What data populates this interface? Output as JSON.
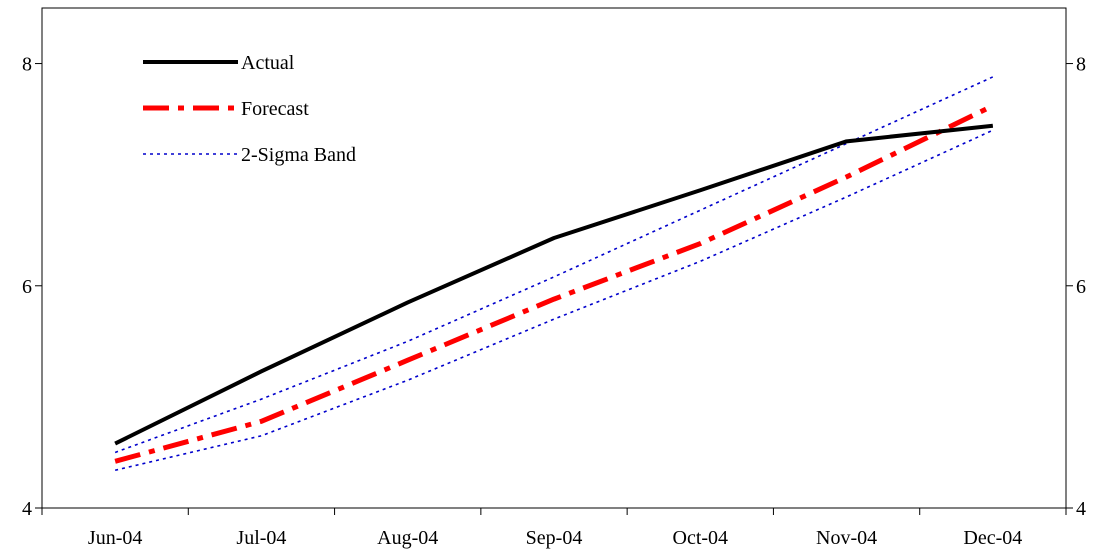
{
  "chart_data": {
    "type": "line",
    "title": "",
    "xlabel": "",
    "ylabel": "",
    "categories": [
      "Jun-04",
      "Jul-04",
      "Aug-04",
      "Sep-04",
      "Oct-04",
      "Nov-04",
      "Dec-04"
    ],
    "ylim": [
      4,
      8.5
    ],
    "y_ticks": [
      4,
      6,
      8
    ],
    "secondary_y_ticks": [
      4,
      6,
      8
    ],
    "grid": false,
    "legend_position": "top-left",
    "series": [
      {
        "name": "Actual",
        "color": "#000000",
        "style": "solid",
        "x": [
          0,
          1,
          2,
          3,
          4,
          5,
          6
        ],
        "values": [
          4.58,
          5.23,
          5.85,
          6.43,
          6.86,
          7.3,
          7.44
        ]
      },
      {
        "name": "Forecast",
        "color": "#ff0000",
        "style": "dash-dot",
        "x": [
          0,
          1,
          2,
          3,
          4,
          5,
          6
        ],
        "values": [
          4.42,
          4.78,
          5.33,
          5.88,
          6.38,
          6.98,
          7.62
        ]
      },
      {
        "name": "2-Sigma Band",
        "color": "#0000cc",
        "style": "dotted",
        "x": [
          0,
          1,
          2,
          3,
          4,
          5,
          6
        ],
        "values": [
          4.5,
          4.98,
          5.5,
          6.08,
          6.68,
          7.28,
          7.88
        ]
      },
      {
        "name": "",
        "color": "#0000cc",
        "style": "dotted",
        "x": [
          0,
          1,
          2,
          3,
          4,
          5,
          6
        ],
        "values": [
          4.34,
          4.65,
          5.15,
          5.7,
          6.22,
          6.8,
          7.4
        ]
      }
    ]
  }
}
